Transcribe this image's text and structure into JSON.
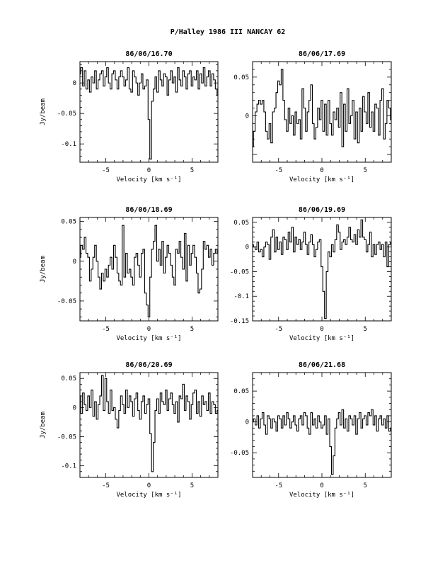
{
  "page": {
    "title": "P/Halley 1986 III    NANCAY      62"
  },
  "chart_data": [
    {
      "type": "line",
      "title": "86/06/16.70",
      "xlabel": "Velocity [km s⁻¹]",
      "ylabel": "Jy/beam",
      "xlim": [
        -8,
        8
      ],
      "ylim": [
        -0.13,
        0.035
      ],
      "xticks": [
        -5,
        0,
        5
      ],
      "yticks": [
        0,
        -0.05,
        -0.1
      ],
      "ytick_labels": [
        "0",
        "-0.05",
        "-0.1"
      ],
      "x": [
        -8,
        -7.8,
        -7.6,
        -7.4,
        -7.2,
        -7,
        -6.8,
        -6.6,
        -6.4,
        -6.2,
        -6,
        -5.8,
        -5.6,
        -5.4,
        -5.2,
        -5,
        -4.8,
        -4.6,
        -4.4,
        -4.2,
        -4,
        -3.8,
        -3.6,
        -3.4,
        -3.2,
        -3,
        -2.8,
        -2.6,
        -2.4,
        -2.2,
        -2,
        -1.8,
        -1.6,
        -1.4,
        -1.2,
        -1,
        -0.8,
        -0.6,
        -0.4,
        -0.2,
        0,
        0.2,
        0.4,
        0.6,
        0.8,
        1,
        1.2,
        1.4,
        1.6,
        1.8,
        2,
        2.2,
        2.4,
        2.6,
        2.8,
        3,
        3.2,
        3.4,
        3.6,
        3.8,
        4,
        4.2,
        4.4,
        4.6,
        4.8,
        5,
        5.2,
        5.4,
        5.6,
        5.8,
        6,
        6.2,
        6.4,
        6.6,
        6.8,
        7,
        7.2,
        7.4,
        7.6,
        7.8,
        8
      ],
      "y": [
        0.015,
        0.025,
        -0.005,
        0.02,
        -0.01,
        0.005,
        -0.015,
        0.01,
        0,
        0.02,
        -0.01,
        0.005,
        0.015,
        0.02,
        -0.005,
        0.01,
        0.025,
        0,
        -0.01,
        0.015,
        0.02,
        0.005,
        -0.01,
        0.01,
        0.02,
        0.01,
        -0.005,
        0.005,
        0.025,
        -0.01,
        -0.015,
        0.02,
        0.01,
        0,
        -0.02,
        0,
        0.015,
        -0.01,
        -0.005,
        0.005,
        -0.06,
        -0.125,
        -0.03,
        -0.01,
        0.01,
        -0.015,
        0.02,
        0.005,
        -0.005,
        0.015,
        0.01,
        -0.02,
        0.005,
        0.02,
        0,
        0.01,
        -0.015,
        0.025,
        0.005,
        -0.005,
        0.02,
        0.01,
        -0.01,
        0.015,
        0.02,
        -0.005,
        0.01,
        0.005,
        0.02,
        -0.01,
        0.015,
        0,
        0.025,
        -0.005,
        0.01,
        0.02,
        -0.005,
        0.015,
        0.005,
        -0.01,
        -0.02
      ]
    },
    {
      "type": "line",
      "title": "86/06/17.69",
      "xlabel": "Velocity [km s⁻¹]",
      "ylabel": "",
      "xlim": [
        -8,
        8
      ],
      "ylim": [
        -0.06,
        0.07
      ],
      "xticks": [
        -5,
        0,
        5
      ],
      "yticks": [
        0.05,
        0
      ],
      "ytick_labels": [
        "0.05",
        "0"
      ],
      "x": [
        -8,
        -7.8,
        -7.6,
        -7.4,
        -7.2,
        -7,
        -6.8,
        -6.6,
        -6.4,
        -6.2,
        -6,
        -5.8,
        -5.6,
        -5.4,
        -5.2,
        -5,
        -4.8,
        -4.6,
        -4.4,
        -4.2,
        -4,
        -3.8,
        -3.6,
        -3.4,
        -3.2,
        -3,
        -2.8,
        -2.6,
        -2.4,
        -2.2,
        -2,
        -1.8,
        -1.6,
        -1.4,
        -1.2,
        -1,
        -0.8,
        -0.6,
        -0.4,
        -0.2,
        0,
        0.2,
        0.4,
        0.6,
        0.8,
        1,
        1.2,
        1.4,
        1.6,
        1.8,
        2,
        2.2,
        2.4,
        2.6,
        2.8,
        3,
        3.2,
        3.4,
        3.6,
        3.8,
        4,
        4.2,
        4.4,
        4.6,
        4.8,
        5,
        5.2,
        5.4,
        5.6,
        5.8,
        6,
        6.2,
        6.4,
        6.6,
        6.8,
        7,
        7.2,
        7.4,
        7.6,
        7.8,
        8
      ],
      "y": [
        -0.04,
        -0.02,
        0.005,
        0.015,
        0.02,
        0.015,
        0.02,
        0.005,
        -0.02,
        -0.03,
        -0.01,
        -0.035,
        0.005,
        0.01,
        0.03,
        0.045,
        0.04,
        0.06,
        0.02,
        -0.005,
        -0.02,
        0.01,
        -0.01,
        0,
        -0.025,
        0.005,
        -0.01,
        -0.005,
        -0.03,
        0.035,
        0.01,
        -0.02,
        0.005,
        0.02,
        0.04,
        -0.01,
        -0.03,
        -0.015,
        0.01,
        -0.005,
        0.02,
        -0.02,
        0.015,
        -0.025,
        0.02,
        -0.01,
        -0.025,
        0.005,
        -0.005,
        0.01,
        -0.015,
        0.03,
        -0.04,
        0.015,
        -0.02,
        0.035,
        -0.01,
        0,
        0.02,
        -0.03,
        0.005,
        -0.035,
        0.01,
        -0.02,
        0.025,
        0.005,
        -0.01,
        0.03,
        -0.015,
        0.005,
        -0.02,
        0.015,
        0.01,
        -0.025,
        0.02,
        0.035,
        -0.03,
        -0.01,
        0.02,
        0.01,
        -0.005
      ]
    },
    {
      "type": "line",
      "title": "86/06/18.69",
      "xlabel": "Velocity [km s⁻¹]",
      "ylabel": "Jy/beam",
      "xlim": [
        -8,
        8
      ],
      "ylim": [
        -0.075,
        0.055
      ],
      "xticks": [
        -5,
        0,
        5
      ],
      "yticks": [
        0.05,
        0,
        -0.05
      ],
      "ytick_labels": [
        "0.05",
        "0",
        "-0.05"
      ],
      "x": [
        -8,
        -7.8,
        -7.6,
        -7.4,
        -7.2,
        -7,
        -6.8,
        -6.6,
        -6.4,
        -6.2,
        -6,
        -5.8,
        -5.6,
        -5.4,
        -5.2,
        -5,
        -4.8,
        -4.6,
        -4.4,
        -4.2,
        -4,
        -3.8,
        -3.6,
        -3.4,
        -3.2,
        -3,
        -2.8,
        -2.6,
        -2.4,
        -2.2,
        -2,
        -1.8,
        -1.6,
        -1.4,
        -1.2,
        -1,
        -0.8,
        -0.6,
        -0.4,
        -0.2,
        0,
        0.2,
        0.4,
        0.6,
        0.8,
        1,
        1.2,
        1.4,
        1.6,
        1.8,
        2,
        2.2,
        2.4,
        2.6,
        2.8,
        3,
        3.2,
        3.4,
        3.6,
        3.8,
        4,
        4.2,
        4.4,
        4.6,
        4.8,
        5,
        5.2,
        5.4,
        5.6,
        5.8,
        6,
        6.2,
        6.4,
        6.6,
        6.8,
        7,
        7.2,
        7.4,
        7.6,
        7.8,
        8
      ],
      "y": [
        0.005,
        0.02,
        0.015,
        0.03,
        0.01,
        0.005,
        -0.025,
        -0.01,
        0.005,
        0.02,
        0,
        -0.02,
        -0.035,
        -0.015,
        -0.025,
        -0.01,
        -0.02,
        -0.005,
        0.005,
        -0.01,
        0.02,
        0.005,
        -0.015,
        -0.025,
        -0.03,
        0.045,
        -0.02,
        0.01,
        -0.015,
        -0.01,
        -0.02,
        -0.03,
        0.005,
        0.01,
        -0.005,
        -0.02,
        0.01,
        0.015,
        -0.04,
        -0.055,
        -0.07,
        -0.02,
        0.015,
        0.025,
        0.045,
        0,
        0.015,
        -0.005,
        0.025,
        -0.015,
        0.005,
        0.02,
        0.01,
        -0.005,
        -0.02,
        -0.03,
        0.015,
        0.01,
        0.025,
        0.005,
        -0.01,
        0.035,
        -0.025,
        0.02,
        -0.005,
        0.01,
        0.02,
        0.005,
        -0.015,
        -0.04,
        -0.035,
        -0.01,
        0.025,
        0.015,
        0.02,
        0.005,
        0.015,
        -0.005,
        0.01,
        0.015,
        0.01
      ]
    },
    {
      "type": "line",
      "title": "86/06/19.69",
      "xlabel": "Velocity [km s⁻¹]",
      "ylabel": "",
      "xlim": [
        -8,
        8
      ],
      "ylim": [
        -0.15,
        0.06
      ],
      "xticks": [
        -5,
        0,
        5
      ],
      "yticks": [
        0.05,
        0,
        -0.05,
        -0.1,
        -0.15
      ],
      "ytick_labels": [
        "0.05",
        "0",
        "-0.05",
        "-0.1",
        "-0.15"
      ],
      "x": [
        -8,
        -7.8,
        -7.6,
        -7.4,
        -7.2,
        -7,
        -6.8,
        -6.6,
        -6.4,
        -6.2,
        -6,
        -5.8,
        -5.6,
        -5.4,
        -5.2,
        -5,
        -4.8,
        -4.6,
        -4.4,
        -4.2,
        -4,
        -3.8,
        -3.6,
        -3.4,
        -3.2,
        -3,
        -2.8,
        -2.6,
        -2.4,
        -2.2,
        -2,
        -1.8,
        -1.6,
        -1.4,
        -1.2,
        -1,
        -0.8,
        -0.6,
        -0.4,
        -0.2,
        0,
        0.2,
        0.4,
        0.6,
        0.8,
        1,
        1.2,
        1.4,
        1.6,
        1.8,
        2,
        2.2,
        2.4,
        2.6,
        2.8,
        3,
        3.2,
        3.4,
        3.6,
        3.8,
        4,
        4.2,
        4.4,
        4.6,
        4.8,
        5,
        5.2,
        5.4,
        5.6,
        5.8,
        6,
        6.2,
        6.4,
        6.6,
        6.8,
        7,
        7.2,
        7.4,
        7.6,
        7.8,
        8
      ],
      "y": [
        0.005,
        0,
        -0.005,
        0.01,
        -0.01,
        -0.005,
        -0.02,
        0,
        0.01,
        0.005,
        -0.025,
        0.02,
        0.035,
        -0.01,
        0.02,
        -0.005,
        0.01,
        -0.015,
        0.02,
        0.015,
        -0.005,
        0.03,
        0.01,
        0.04,
        -0.01,
        0.02,
        0.005,
        0.015,
        -0.005,
        0.01,
        0.03,
        0.005,
        -0.015,
        0.01,
        0.025,
        0.005,
        -0.02,
        -0.005,
        0.01,
        0.015,
        -0.04,
        -0.09,
        -0.145,
        -0.05,
        -0.01,
        -0.02,
        0.005,
        -0.01,
        0.015,
        0.045,
        0.03,
        -0.005,
        0.01,
        0.015,
        0.005,
        0.02,
        0.04,
        0.015,
        0.01,
        0.025,
        0.005,
        0.035,
        0.02,
        0.055,
        0.02,
        0.015,
        -0.01,
        0.005,
        0.03,
        -0.02,
        0.005,
        -0.015,
        0.005,
        0.01,
        -0.005,
        0.005,
        -0.02,
        0.01,
        -0.04,
        0.005,
        0.01
      ]
    },
    {
      "type": "line",
      "title": "86/06/20.69",
      "xlabel": "Velocity [km s⁻¹]",
      "ylabel": "Jy/beam",
      "xlim": [
        -8,
        8
      ],
      "ylim": [
        -0.12,
        0.06
      ],
      "xticks": [
        -5,
        0,
        5
      ],
      "yticks": [
        0.05,
        0,
        -0.05,
        -0.1
      ],
      "ytick_labels": [
        "0.05",
        "0",
        "-0.05",
        "-0.1"
      ],
      "x": [
        -8,
        -7.8,
        -7.6,
        -7.4,
        -7.2,
        -7,
        -6.8,
        -6.6,
        -6.4,
        -6.2,
        -6,
        -5.8,
        -5.6,
        -5.4,
        -5.2,
        -5,
        -4.8,
        -4.6,
        -4.4,
        -4.2,
        -4,
        -3.8,
        -3.6,
        -3.4,
        -3.2,
        -3,
        -2.8,
        -2.6,
        -2.4,
        -2.2,
        -2,
        -1.8,
        -1.6,
        -1.4,
        -1.2,
        -1,
        -0.8,
        -0.6,
        -0.4,
        -0.2,
        0,
        0.2,
        0.4,
        0.6,
        0.8,
        1,
        1.2,
        1.4,
        1.6,
        1.8,
        2,
        2.2,
        2.4,
        2.6,
        2.8,
        3,
        3.2,
        3.4,
        3.6,
        3.8,
        4,
        4.2,
        4.4,
        4.6,
        4.8,
        5,
        5.2,
        5.4,
        5.6,
        5.8,
        6,
        6.2,
        6.4,
        6.6,
        6.8,
        7,
        7.2,
        7.4,
        7.6,
        7.8,
        8
      ],
      "y": [
        0.02,
        -0.01,
        0.025,
        0.005,
        -0.005,
        0.02,
        0,
        0.03,
        -0.015,
        0.01,
        -0.02,
        0.005,
        0.02,
        0.055,
        -0.005,
        0.05,
        0.01,
        -0.01,
        0.03,
        -0.005,
        0,
        -0.02,
        -0.035,
        -0.005,
        0.02,
        0.005,
        -0.01,
        0.03,
        0,
        0.02,
        0.01,
        -0.015,
        0.015,
        0.025,
        -0.005,
        -0.02,
        0.01,
        0.02,
        -0.01,
        0.005,
        0.015,
        -0.045,
        -0.11,
        -0.06,
        -0.005,
        0.015,
        -0.01,
        0.025,
        0.01,
        0.005,
        0.03,
        -0.005,
        0.015,
        0.025,
        0.005,
        -0.01,
        0.01,
        -0.025,
        0.02,
        0.015,
        0.04,
        -0.005,
        0.02,
        0.01,
        -0.02,
        0.005,
        0.025,
        0.03,
        -0.01,
        0.01,
        -0.015,
        0.02,
        0.005,
        0.01,
        -0.005,
        0.025,
        -0.01,
        0.01,
        0.005,
        -0.01,
        -0.005
      ]
    },
    {
      "type": "line",
      "title": "86/06/21.68",
      "xlabel": "Velocity [km s⁻¹]",
      "ylabel": "",
      "xlim": [
        -8,
        8
      ],
      "ylim": [
        -0.09,
        0.08
      ],
      "xticks": [
        -5,
        0,
        5
      ],
      "yticks": [
        0.05,
        0,
        -0.05
      ],
      "ytick_labels": [
        "0.05",
        "0",
        "-0.05"
      ],
      "x": [
        -8,
        -7.8,
        -7.6,
        -7.4,
        -7.2,
        -7,
        -6.8,
        -6.6,
        -6.4,
        -6.2,
        -6,
        -5.8,
        -5.6,
        -5.4,
        -5.2,
        -5,
        -4.8,
        -4.6,
        -4.4,
        -4.2,
        -4,
        -3.8,
        -3.6,
        -3.4,
        -3.2,
        -3,
        -2.8,
        -2.6,
        -2.4,
        -2.2,
        -2,
        -1.8,
        -1.6,
        -1.4,
        -1.2,
        -1,
        -0.8,
        -0.6,
        -0.4,
        -0.2,
        0,
        0.2,
        0.4,
        0.6,
        0.8,
        1,
        1.2,
        1.4,
        1.6,
        1.8,
        2,
        2.2,
        2.4,
        2.6,
        2.8,
        3,
        3.2,
        3.4,
        3.6,
        3.8,
        4,
        4.2,
        4.4,
        4.6,
        4.8,
        5,
        5.2,
        5.4,
        5.6,
        5.8,
        6,
        6.2,
        6.4,
        6.6,
        6.8,
        7,
        7.2,
        7.4,
        7.6,
        7.8,
        8
      ],
      "y": [
        0,
        0.005,
        -0.005,
        0.01,
        -0.01,
        0.005,
        0.015,
        -0.005,
        -0.02,
        0.01,
        0.005,
        -0.01,
        0.005,
        0,
        -0.015,
        0.01,
        0.005,
        -0.01,
        0.01,
        -0.005,
        0.015,
        0.005,
        -0.01,
        0,
        0.01,
        -0.005,
        -0.015,
        0.005,
        0.01,
        -0.005,
        0.015,
        0.01,
        -0.01,
        -0.02,
        0.015,
        -0.005,
        0.005,
        -0.01,
        0.01,
        0,
        -0.01,
        -0.005,
        0.01,
        -0.02,
        0.005,
        -0.04,
        -0.085,
        -0.055,
        -0.01,
        0.005,
        0.015,
        -0.005,
        0.02,
        -0.01,
        0.005,
        -0.015,
        0.01,
        0.005,
        -0.005,
        0.01,
        -0.02,
        0.005,
        0.015,
        -0.01,
        0.005,
        0.01,
        -0.005,
        0.015,
        0.01,
        0.02,
        -0.005,
        0.01,
        -0.015,
        0.005,
        0.01,
        -0.005,
        0.005,
        -0.01,
        0.01,
        -0.015,
        -0.01
      ]
    }
  ]
}
